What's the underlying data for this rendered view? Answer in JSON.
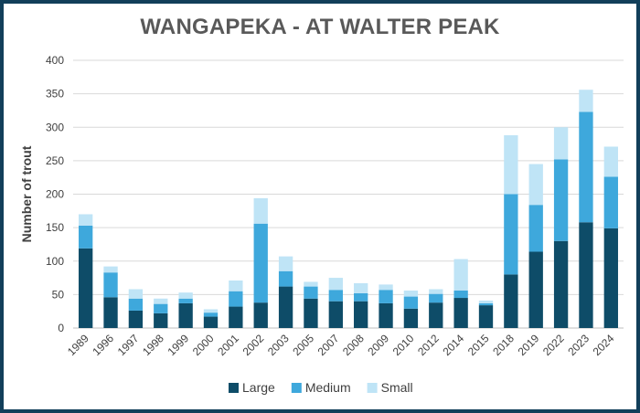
{
  "chart_data": {
    "type": "bar",
    "stacked": true,
    "title": "WANGAPEKA - AT WALTER PEAK",
    "xlabel": "",
    "ylabel": "Number of trout",
    "ylim": [
      0,
      400
    ],
    "yticks": [
      0,
      50,
      100,
      150,
      200,
      250,
      300,
      350,
      400
    ],
    "grid": true,
    "legend_position": "bottom",
    "categories": [
      "1989",
      "1996",
      "1997",
      "1998",
      "1999",
      "2000",
      "2001",
      "2002",
      "2003",
      "2005",
      "2007",
      "2008",
      "2009",
      "2010",
      "2012",
      "2014",
      "2015",
      "2018",
      "2019",
      "2022",
      "2023",
      "2024"
    ],
    "series": [
      {
        "name": "Large",
        "color": "#0e4c68",
        "values": [
          119,
          46,
          26,
          22,
          37,
          17,
          32,
          38,
          62,
          44,
          40,
          40,
          37,
          29,
          38,
          45,
          34,
          80,
          114,
          130,
          158,
          149
        ]
      },
      {
        "name": "Medium",
        "color": "#3ea8dc",
        "values": [
          34,
          37,
          18,
          14,
          7,
          6,
          23,
          118,
          23,
          18,
          17,
          12,
          20,
          18,
          13,
          11,
          3,
          120,
          70,
          122,
          165,
          77
        ]
      },
      {
        "name": "Small",
        "color": "#bfe4f6",
        "values": [
          17,
          9,
          14,
          8,
          9,
          5,
          16,
          38,
          22,
          7,
          18,
          15,
          8,
          9,
          7,
          47,
          4,
          88,
          61,
          48,
          33,
          45
        ]
      }
    ]
  }
}
